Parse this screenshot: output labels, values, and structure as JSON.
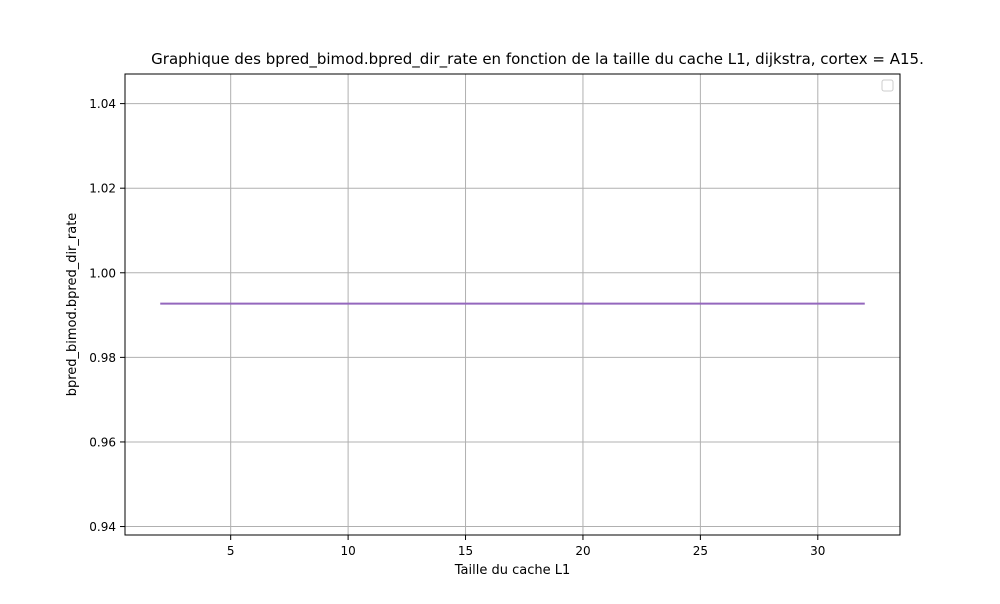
{
  "chart_data": {
    "type": "line",
    "title": "Graphique des bpred_bimod.bpred_dir_rate en fonction de la taille du cache L1, dijkstra, cortex = A15.",
    "xlabel": "Taille du cache L1",
    "ylabel": "bpred_bimod.bpred_dir_rate",
    "xlim": [
      0.5,
      33.5
    ],
    "ylim": [
      0.938,
      1.047
    ],
    "xticks": [
      5,
      10,
      15,
      20,
      25,
      30
    ],
    "xtick_labels": [
      "5",
      "10",
      "15",
      "20",
      "25",
      "30"
    ],
    "yticks": [
      0.94,
      0.96,
      0.98,
      1.0,
      1.02,
      1.04
    ],
    "ytick_labels": [
      "0.94",
      "0.96",
      "0.98",
      "1.00",
      "1.02",
      "1.04"
    ],
    "grid": true,
    "legend": {
      "position": "top-right",
      "entries": []
    },
    "series": [
      {
        "name": "",
        "color": "#9467bd",
        "x": [
          2,
          4,
          8,
          16,
          32
        ],
        "y": [
          0.9927,
          0.9927,
          0.9927,
          0.9927,
          0.9927
        ]
      }
    ]
  }
}
